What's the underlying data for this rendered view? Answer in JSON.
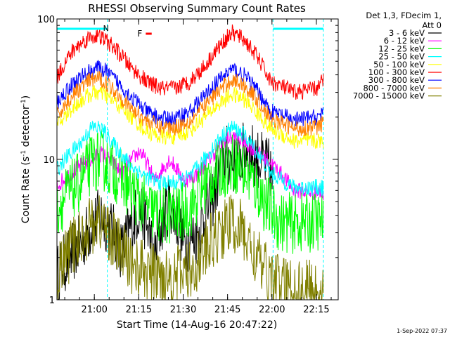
{
  "chart_data": {
    "type": "line",
    "title": "RHESSI Observing Summary Count Rates",
    "xlabel": "Start Time (14-Aug-16 20:47:22)",
    "ylabel_main": "Count Rate (s",
    "ylabel_sup1": "-1",
    "ylabel_mid": " detector",
    "ylabel_sup2": "-1",
    "ylabel_end": ")",
    "y_scale": "log",
    "ylim": [
      1,
      100
    ],
    "xlim_minutes": [
      0,
      95
    ],
    "x_tick_labels": [
      "21:00",
      "21:15",
      "21:30",
      "21:45",
      "22:00",
      "22:15"
    ],
    "x_tick_minutes": [
      12.63,
      27.63,
      42.63,
      57.63,
      72.63,
      87.63
    ],
    "y_tick_labels": [
      "1",
      "10",
      "100"
    ],
    "y_tick_values": [
      1,
      10,
      100
    ],
    "legend_header": [
      "Det 1,3, FDecim 1,",
      "Att 0"
    ],
    "legend_position": "right",
    "flag_label": "N",
    "flare_flag_label": "F",
    "timestamp": "1-Sep-2022 07:37",
    "series": [
      {
        "name": "3 - 6 keV",
        "color": "#000000",
        "x_minutes": [
          0,
          8,
          15,
          22,
          28,
          33,
          38,
          43,
          48,
          53,
          57,
          60,
          64,
          68,
          72,
          73
        ],
        "y": [
          1.5,
          2.5,
          4.0,
          2.2,
          4.5,
          2.0,
          5.0,
          2.5,
          3.0,
          5.5,
          11.0,
          9.0,
          12.0,
          10.0,
          8.5,
          6.0
        ]
      },
      {
        "name": "6 - 12 keV",
        "color": "#ff00ff",
        "x_minutes": [
          0,
          8,
          15,
          22,
          28,
          33,
          38,
          43,
          48,
          53,
          57,
          60,
          64,
          68,
          72,
          80,
          88,
          90
        ],
        "y": [
          6.5,
          9.0,
          11.0,
          8.0,
          11.5,
          7.0,
          10.0,
          7.0,
          8.0,
          11.0,
          14.0,
          14.5,
          13.0,
          11.0,
          9.5,
          6.0,
          5.8,
          5.8
        ]
      },
      {
        "name": "12 - 25 keV",
        "color": "#00ff00",
        "x_minutes": [
          0,
          8,
          12,
          15,
          20,
          25,
          30,
          35,
          40,
          45,
          50,
          55,
          60,
          65,
          70,
          75,
          80,
          88,
          90
        ],
        "y": [
          4.5,
          7.0,
          9.5,
          10.0,
          8.0,
          6.0,
          4.5,
          4.0,
          4.0,
          4.5,
          6.5,
          8.5,
          9.5,
          7.5,
          5.0,
          3.6,
          3.5,
          3.6,
          3.6
        ]
      },
      {
        "name": "25 - 50 keV",
        "color": "#00ffff",
        "x_minutes": [
          0,
          8,
          12,
          15,
          20,
          25,
          30,
          35,
          40,
          45,
          50,
          55,
          59,
          63,
          68,
          72,
          80,
          88,
          90
        ],
        "y": [
          8.5,
          13.0,
          17.0,
          16.5,
          12.0,
          9.0,
          7.5,
          6.8,
          6.8,
          7.5,
          10.0,
          14.0,
          17.0,
          15.0,
          11.0,
          8.0,
          6.3,
          6.3,
          6.3
        ]
      },
      {
        "name": "50 - 100 keV",
        "color": "#ffff00",
        "x_minutes": [
          0,
          5,
          10,
          13,
          16,
          20,
          25,
          30,
          35,
          40,
          45,
          50,
          55,
          59,
          63,
          68,
          72,
          80,
          88,
          90
        ],
        "y": [
          17.0,
          23.0,
          28.0,
          30.0,
          29.0,
          25.0,
          20.0,
          16.0,
          14.5,
          14.5,
          16.0,
          20.0,
          25.0,
          29.0,
          27.0,
          21.0,
          16.5,
          13.5,
          13.5,
          13.5
        ]
      },
      {
        "name": "100 - 300 keV",
        "color": "#ff0000",
        "x_minutes": [
          0,
          5,
          10,
          13,
          16,
          20,
          25,
          30,
          35,
          40,
          45,
          50,
          55,
          59,
          63,
          68,
          72,
          80,
          88,
          90
        ],
        "y": [
          38.0,
          58.0,
          72.0,
          76.0,
          72.0,
          60.0,
          45.0,
          36.0,
          32.0,
          32.0,
          36.0,
          46.0,
          64.0,
          80.0,
          72.0,
          52.0,
          36.0,
          30.0,
          32.0,
          37.0
        ]
      },
      {
        "name": "300 - 800 keV",
        "color": "#0000ff",
        "x_minutes": [
          0,
          5,
          10,
          13,
          16,
          20,
          25,
          30,
          35,
          40,
          45,
          50,
          55,
          59,
          63,
          68,
          72,
          80,
          88,
          90
        ],
        "y": [
          25.0,
          34.0,
          41.0,
          45.0,
          43.0,
          36.0,
          28.0,
          22.0,
          19.5,
          19.5,
          22.0,
          28.0,
          37.0,
          44.0,
          40.0,
          30.0,
          22.0,
          19.0,
          20.0,
          22.0
        ]
      },
      {
        "name": "800 - 7000 keV",
        "color": "#ff8000",
        "x_minutes": [
          0,
          5,
          10,
          13,
          16,
          20,
          25,
          30,
          35,
          40,
          45,
          50,
          55,
          59,
          63,
          68,
          72,
          80,
          88,
          90
        ],
        "y": [
          20.0,
          28.0,
          35.0,
          38.0,
          36.0,
          30.0,
          23.0,
          19.0,
          17.0,
          17.0,
          19.0,
          24.0,
          31.0,
          37.0,
          34.0,
          26.0,
          19.5,
          16.5,
          17.0,
          18.0
        ]
      },
      {
        "name": "7000 - 15000 keV",
        "color": "#808000",
        "x_minutes": [
          0,
          8,
          12,
          15,
          20,
          25,
          30,
          35,
          40,
          45,
          50,
          55,
          58,
          62,
          66,
          70,
          75,
          80,
          88,
          90
        ],
        "y": [
          1.5,
          2.8,
          3.5,
          3.6,
          2.5,
          1.8,
          1.6,
          1.5,
          1.5,
          1.6,
          2.2,
          3.0,
          3.5,
          3.2,
          2.2,
          1.6,
          1.3,
          1.2,
          1.2,
          1.2
        ]
      }
    ],
    "night_bars": [
      {
        "label": "N",
        "x_start_minutes": 0,
        "x_end_minutes": 17
      },
      {
        "label": "",
        "x_start_minutes": 73,
        "x_end_minutes": 90
      }
    ],
    "flare_marker": {
      "label": "F",
      "x_start_minutes": 30,
      "x_end_minutes": 32
    }
  }
}
